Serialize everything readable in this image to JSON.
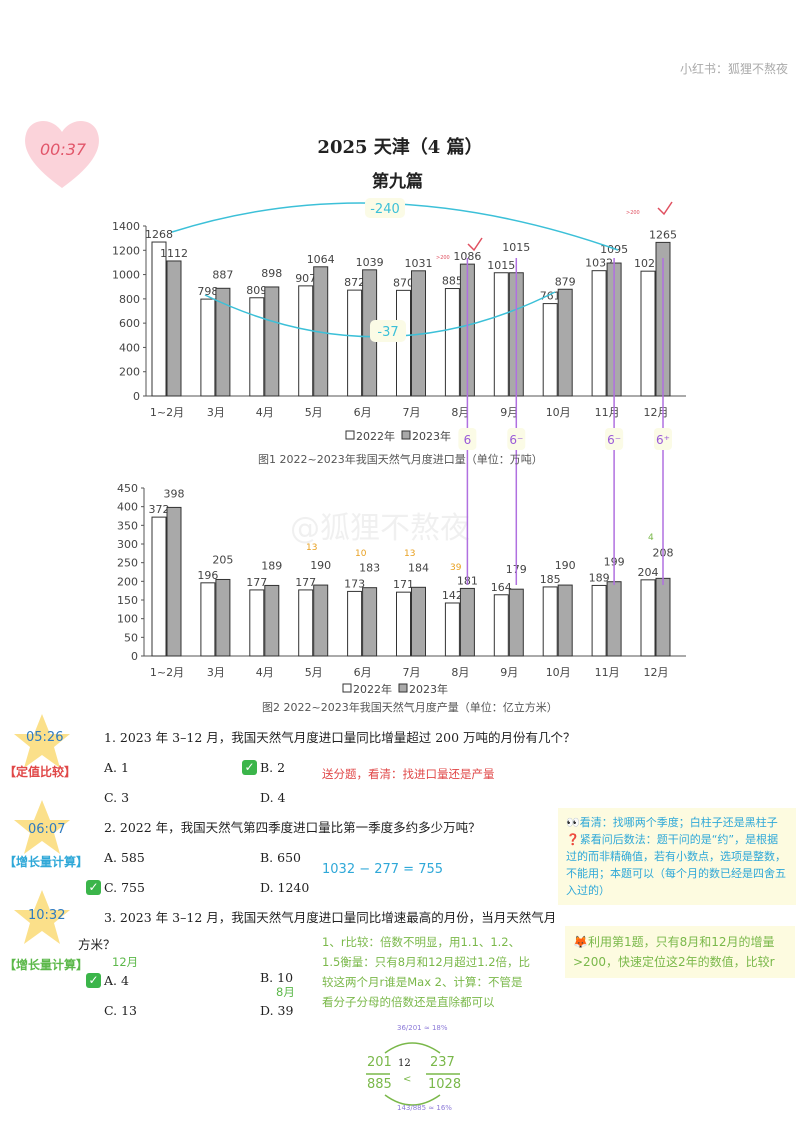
{
  "watermark": "小红书：狐狸不熬夜",
  "timer": "00:37",
  "title": "2025 天津（4 篇）",
  "section": "第九篇",
  "legend": {
    "y2022": "2022年",
    "y2023": "2023年"
  },
  "chart_data": [
    {
      "type": "bar",
      "title": "图1  2022~2023年我国天然气月度进口量（单位：万吨）",
      "categories": [
        "1~2月",
        "3月",
        "4月",
        "5月",
        "6月",
        "7月",
        "8月",
        "9月",
        "10月",
        "11月",
        "12月"
      ],
      "series": [
        {
          "name": "2022年",
          "values": [
            1268,
            798,
            809,
            907,
            872,
            870,
            885,
            1015,
            761,
            1032,
            1028
          ],
          "color": "#ffffff"
        },
        {
          "name": "2023年",
          "values": [
            1112,
            887,
            898,
            1064,
            1039,
            1031,
            1086,
            1015,
            879,
            1095,
            1265
          ],
          "color": "#a9a9a9"
        }
      ],
      "ylim": [
        0,
        1400
      ],
      "yticks": [
        0,
        200,
        400,
        600,
        800,
        1000,
        1200,
        1400
      ],
      "legend": "bottom"
    },
    {
      "type": "bar",
      "title": "图2  2022~2023年我国天然气月度产量（单位：亿立方米）",
      "categories": [
        "1~2月",
        "3月",
        "4月",
        "5月",
        "6月",
        "7月",
        "8月",
        "9月",
        "10月",
        "11月",
        "12月"
      ],
      "series": [
        {
          "name": "2022年",
          "values": [
            372,
            196,
            177,
            177,
            173,
            171,
            142,
            164,
            185,
            189,
            204
          ],
          "color": "#ffffff"
        },
        {
          "name": "2023年",
          "values": [
            398,
            205,
            189,
            190,
            183,
            184,
            181,
            179,
            190,
            199,
            208
          ],
          "color": "#a9a9a9"
        }
      ],
      "ylim": [
        0,
        450
      ],
      "yticks": [
        0,
        50,
        100,
        150,
        200,
        250,
        300,
        350,
        400,
        450
      ],
      "legend": "bottom"
    }
  ],
  "annotations": {
    "diff_top": "-240",
    "diff_bottom": "-37",
    "marks": [
      "6",
      "6⁻",
      "6⁻",
      "6⁺"
    ],
    "prod_diffs": [
      "13",
      "10",
      "13",
      "39",
      "4"
    ],
    "small_red": ">200"
  },
  "image_watermark": "@狐狸不熬夜",
  "questions": [
    {
      "time": "05:26",
      "tag": "【定值比较】",
      "text": "1. 2023 年 3–12 月，我国天然气月度进口量同比增量超过 200 万吨的月份有几个？",
      "options": [
        "A. 1",
        "B. 2",
        "C. 3",
        "D. 4"
      ],
      "answer": 1,
      "note": "送分题，看清：找进口量还是产量"
    },
    {
      "time": "06:07",
      "tag": "【增长量计算】",
      "text": "2. 2022 年，我国天然气第四季度进口量比第一季度多约多少万吨？",
      "options": [
        "A. 585",
        "B. 650",
        "C. 755",
        "D. 1240"
      ],
      "answer": 2,
      "note": "1032 − 277 = 755",
      "box": "👀看清：找哪两个季度；白柱子还是黑柱子 ❓紧看问后数法：题干问的是“约”，是根据过的而非精确值，若有小数点，选项是整数，不能用；本题可以（每个月的数已经是四舍五入过的）"
    },
    {
      "time": "10:32",
      "tag": "【增长量计算】",
      "text": "3. 2023 年 3–12 月，我国天然气月度进口量同比增速最高的月份，当月天然气月度产量同比增加多少亿立",
      "text_cont": "方米？",
      "options": [
        "A. 4",
        "B. 10",
        "C. 13",
        "D. 39"
      ],
      "answer": 0,
      "hint_a": "12月",
      "hint_d": "8月",
      "note": "1、r比较：倍数不明显，用1.1、1.2、1.5衡量：只有8月和12月超过1.2倍，比较这两个月r谁是Max 2、计算：不管是看分子分母的倍数还是直除都可以",
      "box": "🦊利用第1题，只有8月和12月的增量>200，快速定位这2年的数值，比较r"
    }
  ],
  "fraction": {
    "left_num": "201",
    "left_den": "885",
    "mid": "12",
    "cmp": "<",
    "right_num": "237",
    "right_den": "1028",
    "top": "36/201 ≈ 18%",
    "bottom": "143/885 ≈ 16%"
  }
}
